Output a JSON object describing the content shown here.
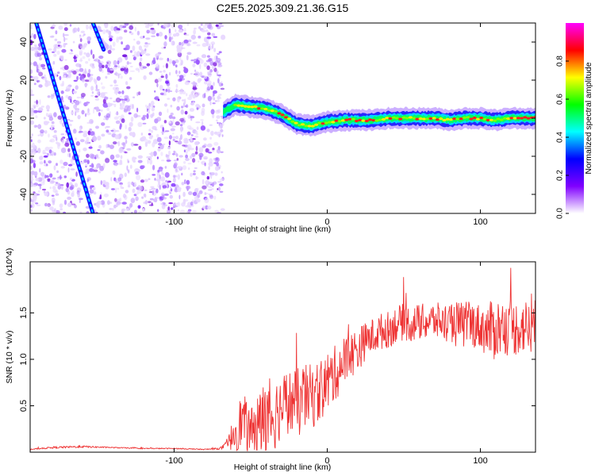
{
  "title": "C2E5.2025.309.21.36.G15",
  "chart_data": [
    {
      "type": "heatmap",
      "name": "spectrogram",
      "xlabel": "Height of straight line (km)",
      "ylabel": "Frequency (Hz)",
      "xlim": [
        -194,
        136
      ],
      "ylim": [
        -50,
        50
      ],
      "x_ticks": [
        -100,
        0,
        100
      ],
      "y_ticks": [
        -40,
        -20,
        0,
        20,
        40
      ],
      "colorbar": {
        "label": "Normalized spectral amplitude",
        "range": [
          0,
          1
        ],
        "ticks": [
          0.0,
          0.2,
          0.4,
          0.6,
          0.8
        ],
        "tick_labels": [
          "0.0",
          "0.2",
          "0.4",
          "0.6",
          "0.8"
        ],
        "colormap": [
          "#ffffff",
          "#8000ff",
          "#0000ff",
          "#00ffff",
          "#00ff00",
          "#ffff00",
          "#ff0000",
          "#ff00ff"
        ]
      },
      "noisy_region_x": [
        -194,
        -68
      ],
      "main_ridge": [
        {
          "x": -68,
          "y": 3
        },
        {
          "x": -60,
          "y": 7
        },
        {
          "x": -50,
          "y": 6
        },
        {
          "x": -40,
          "y": 5
        },
        {
          "x": -30,
          "y": 2
        },
        {
          "x": -20,
          "y": -3
        },
        {
          "x": -10,
          "y": -4
        },
        {
          "x": 0,
          "y": -2
        },
        {
          "x": 10,
          "y": -1
        },
        {
          "x": 20,
          "y": -1
        },
        {
          "x": 30,
          "y": -1
        },
        {
          "x": 40,
          "y": 0
        },
        {
          "x": 50,
          "y": 0
        },
        {
          "x": 60,
          "y": 0
        },
        {
          "x": 70,
          "y": 0
        },
        {
          "x": 80,
          "y": -1
        },
        {
          "x": 90,
          "y": 0
        },
        {
          "x": 100,
          "y": 0
        },
        {
          "x": 110,
          "y": -1
        },
        {
          "x": 120,
          "y": 0
        },
        {
          "x": 136,
          "y": 0
        }
      ],
      "diagonal_streaks": [
        {
          "x1": -190,
          "y1": 50,
          "x2": -153,
          "y2": -50
        },
        {
          "x1": -153,
          "y1": 50,
          "x2": -146,
          "y2": 36
        }
      ]
    },
    {
      "type": "line",
      "name": "snr",
      "xlabel": "Height of straight line (km)",
      "ylabel": "SNR (10 * v/v)",
      "y_scale_label": "(x10^4)",
      "xlim": [
        -194,
        136
      ],
      "ylim": [
        0,
        2.05
      ],
      "x_ticks": [
        -100,
        0,
        100
      ],
      "y_ticks": [
        0.5,
        1.0,
        1.5
      ],
      "y_tick_labels": [
        "0.5",
        "1.0",
        "1.5"
      ],
      "color": "#ee3333",
      "x": [
        -194,
        -180,
        -160,
        -140,
        -120,
        -100,
        -80,
        -70,
        -65,
        -60,
        -55,
        -50,
        -45,
        -40,
        -35,
        -30,
        -25,
        -20,
        -15,
        -10,
        -5,
        0,
        5,
        10,
        15,
        20,
        25,
        30,
        35,
        40,
        45,
        50,
        55,
        60,
        65,
        70,
        75,
        80,
        85,
        90,
        95,
        100,
        105,
        110,
        115,
        120,
        125,
        130,
        136
      ],
      "y": [
        0.03,
        0.05,
        0.06,
        0.05,
        0.04,
        0.04,
        0.03,
        0.04,
        0.08,
        0.25,
        0.35,
        0.2,
        0.3,
        0.35,
        0.4,
        0.5,
        0.55,
        0.5,
        0.6,
        0.6,
        0.65,
        0.75,
        0.85,
        0.95,
        1.05,
        1.1,
        1.2,
        1.25,
        1.3,
        1.32,
        1.38,
        1.4,
        1.38,
        1.4,
        1.4,
        1.42,
        1.4,
        1.38,
        1.38,
        1.36,
        1.38,
        1.35,
        1.3,
        1.33,
        1.35,
        1.32,
        1.35,
        1.35,
        1.35
      ],
      "noise_amplitude": [
        0.005,
        0.01,
        0.01,
        0.005,
        0.005,
        0.005,
        0.005,
        0.01,
        0.05,
        0.25,
        0.3,
        0.25,
        0.35,
        0.45,
        0.4,
        0.35,
        0.35,
        0.4,
        0.35,
        0.35,
        0.35,
        0.35,
        0.3,
        0.3,
        0.25,
        0.25,
        0.2,
        0.2,
        0.2,
        0.2,
        0.2,
        0.2,
        0.2,
        0.2,
        0.2,
        0.2,
        0.2,
        0.25,
        0.25,
        0.25,
        0.25,
        0.25,
        0.3,
        0.35,
        0.3,
        0.3,
        0.3,
        0.3,
        0.3
      ]
    }
  ]
}
